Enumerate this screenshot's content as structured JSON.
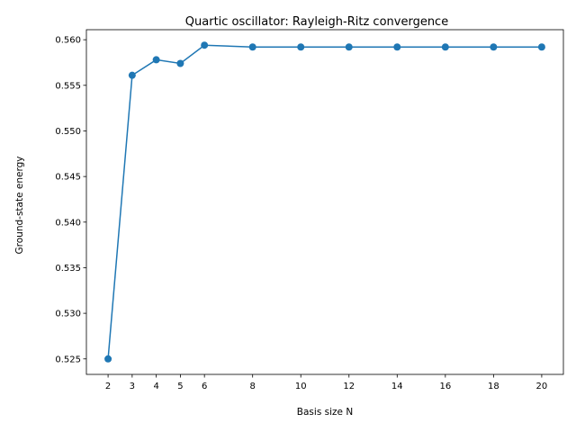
{
  "chart_data": {
    "type": "line",
    "title": "Quartic oscillator: Rayleigh-Ritz convergence",
    "xlabel": "Basis size N",
    "ylabel": "Ground-state energy",
    "x": [
      2,
      3,
      4,
      5,
      6,
      8,
      10,
      12,
      14,
      16,
      18,
      20
    ],
    "series": [
      {
        "values": [
          0.525,
          0.5561,
          0.5578,
          0.5574,
          0.5594,
          0.5592,
          0.5592,
          0.5592,
          0.5592,
          0.5592,
          0.5592,
          0.5592
        ],
        "color": "#1f77b4",
        "marker": "circle"
      }
    ],
    "xticks": [
      "2",
      "3",
      "4",
      "5",
      "6",
      "8",
      "10",
      "12",
      "14",
      "16",
      "18",
      "20"
    ],
    "yticks": [
      "0.525",
      "0.530",
      "0.535",
      "0.540",
      "0.545",
      "0.550",
      "0.555",
      "0.560"
    ],
    "xlim": [
      1.1,
      20.9
    ],
    "ylim": [
      0.5233,
      0.5611
    ],
    "grid": false,
    "legend": "none"
  }
}
